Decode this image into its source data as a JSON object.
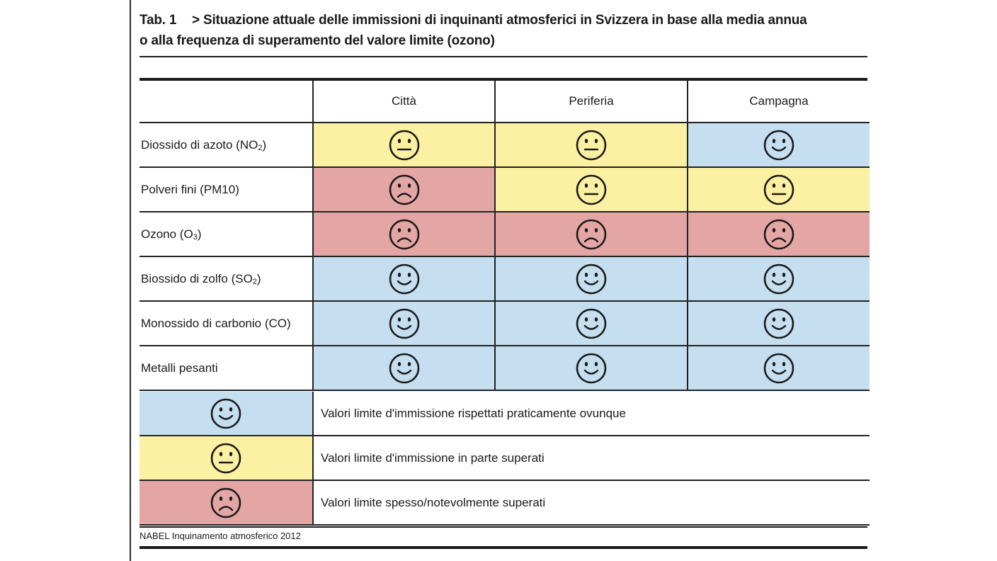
{
  "title": {
    "number": "Tab. 1",
    "text_line1": "> Situazione attuale delle immissioni di inquinanti atmosferici in Svizzera in base alla media annua",
    "text_line2": "o alla frequenza di superamento del valore limite (ozono)"
  },
  "columns": [
    "Città",
    "Periferia",
    "Campagna"
  ],
  "rows": [
    {
      "label_pre": "Diossido di azoto (NO",
      "label_sub": "2",
      "label_post": ")",
      "ratings": [
        "neutral",
        "neutral",
        "happy"
      ]
    },
    {
      "label_pre": "Polveri fini (PM10)",
      "label_sub": "",
      "label_post": "",
      "ratings": [
        "sad",
        "neutral",
        "neutral"
      ]
    },
    {
      "label_pre": "Ozono (O",
      "label_sub": "3",
      "label_post": ")",
      "ratings": [
        "sad",
        "sad",
        "sad"
      ]
    },
    {
      "label_pre": "Biossido di zolfo (SO",
      "label_sub": "2",
      "label_post": ")",
      "ratings": [
        "happy",
        "happy",
        "happy"
      ]
    },
    {
      "label_pre": "Monossido di carbonio (CO)",
      "label_sub": "",
      "label_post": "",
      "ratings": [
        "happy",
        "happy",
        "happy"
      ]
    },
    {
      "label_pre": "Metalli pesanti",
      "label_sub": "",
      "label_post": "",
      "ratings": [
        "happy",
        "happy",
        "happy"
      ]
    }
  ],
  "legend": [
    {
      "rating": "happy",
      "text": "Valori limite d'immissione rispettati praticamente ovunque"
    },
    {
      "rating": "neutral",
      "text": "Valori limite d'immissione in parte superati"
    },
    {
      "rating": "sad",
      "text": "Valori limite spesso/notevolmente superati"
    }
  ],
  "colors": {
    "happy": "#c5dff0",
    "neutral": "#fcf0a2",
    "sad": "#e4a5a5"
  },
  "icons": {
    "happy": "smiley-happy-icon",
    "neutral": "smiley-neutral-icon",
    "sad": "smiley-sad-icon"
  },
  "source": "NABEL Inquinamento atmosferico 2012"
}
